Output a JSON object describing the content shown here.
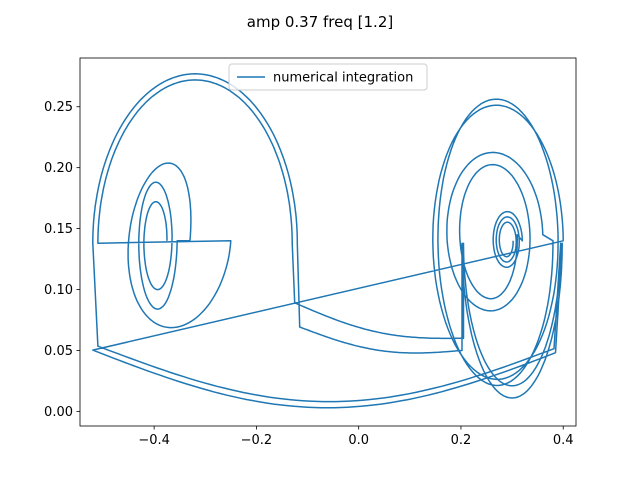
{
  "chart_data": {
    "type": "line",
    "title": "amp 0.37 freq [1.2]",
    "xlabel": "",
    "ylabel": "",
    "xlim": [
      -0.545,
      0.425
    ],
    "ylim": [
      -0.012,
      0.29
    ],
    "x_ticks": [
      -0.4,
      -0.2,
      0.0,
      0.2,
      0.4
    ],
    "x_tick_labels": [
      "−0.4",
      "−0.2",
      "0.0",
      "0.2",
      "0.4"
    ],
    "y_ticks": [
      0.0,
      0.05,
      0.1,
      0.15,
      0.2,
      0.25
    ],
    "y_tick_labels": [
      "0.00",
      "0.05",
      "0.10",
      "0.15",
      "0.20",
      "0.25"
    ],
    "grid": false,
    "legend": {
      "position": "upper-center",
      "entries": [
        "numerical integration"
      ]
    },
    "series": [
      {
        "name": "numerical integration",
        "color": "#1f77b4",
        "trajectory": "Duffing-type forced oscillator orbit: begins near (-0.38, 0.14) circling the left well, grows into large orbits around both wells (x from about -0.52 to 0.40, y from about 0.005 to 0.277) and ends spiralling near (0.30, 0.14) in the right well",
        "points": [
          [
            -0.38,
            0.138
          ],
          [
            -0.37,
            0.167
          ],
          [
            -0.4,
            0.13
          ],
          [
            -0.41,
            0.14
          ]
        ]
      }
    ]
  }
}
